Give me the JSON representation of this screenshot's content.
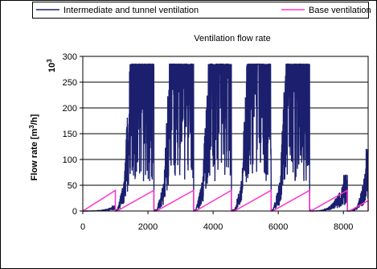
{
  "chart_data": {
    "type": "line",
    "title": "Ventilation flow  rate",
    "ylabel_main": "Flow rate [m",
    "ylabel_sup": "3",
    "ylabel_tail": "/h]",
    "yunit_base": "10",
    "yunit_exp": "3",
    "xlabel": "",
    "xlim": [
      0,
      8760
    ],
    "ylim": [
      0,
      300
    ],
    "xticks": [
      0,
      2000,
      4000,
      6000,
      8000
    ],
    "yticks": [
      0,
      50,
      100,
      150,
      200,
      250,
      300
    ],
    "grid": "horizontal",
    "legend_position": "top",
    "series": [
      {
        "name": "Intermediate and tunnel ventilation",
        "color": "#1b1f6e",
        "style": "dense-spiky",
        "base_level": 3,
        "clip_max": 285,
        "bursts": [
          {
            "start": 0,
            "end": 1000,
            "peak": 10
          },
          {
            "start": 1050,
            "end": 2180,
            "peak": 285
          },
          {
            "start": 2260,
            "end": 3400,
            "peak": 285
          },
          {
            "start": 3460,
            "end": 4560,
            "peak": 285
          },
          {
            "start": 4650,
            "end": 5780,
            "peak": 285
          },
          {
            "start": 5830,
            "end": 6960,
            "peak": 285
          },
          {
            "start": 7000,
            "end": 8120,
            "peak": 70
          },
          {
            "start": 8130,
            "end": 8760,
            "peak": 120
          }
        ]
      },
      {
        "name": "Base ventilation",
        "color": "#ff33cc",
        "style": "sawtooth",
        "segments": [
          {
            "x0": 0,
            "y0": 0,
            "x1": 1000,
            "y1": 40
          },
          {
            "x0": 1050,
            "y0": 0,
            "x1": 2180,
            "y1": 40
          },
          {
            "x0": 2260,
            "y0": 0,
            "x1": 3400,
            "y1": 40
          },
          {
            "x0": 3460,
            "y0": 0,
            "x1": 4560,
            "y1": 40
          },
          {
            "x0": 4650,
            "y0": 0,
            "x1": 5780,
            "y1": 40
          },
          {
            "x0": 5830,
            "y0": 0,
            "x1": 6960,
            "y1": 40
          },
          {
            "x0": 7000,
            "y0": 0,
            "x1": 8120,
            "y1": 40
          },
          {
            "x0": 8180,
            "y0": 0,
            "x1": 8760,
            "y1": 20
          }
        ]
      }
    ]
  }
}
